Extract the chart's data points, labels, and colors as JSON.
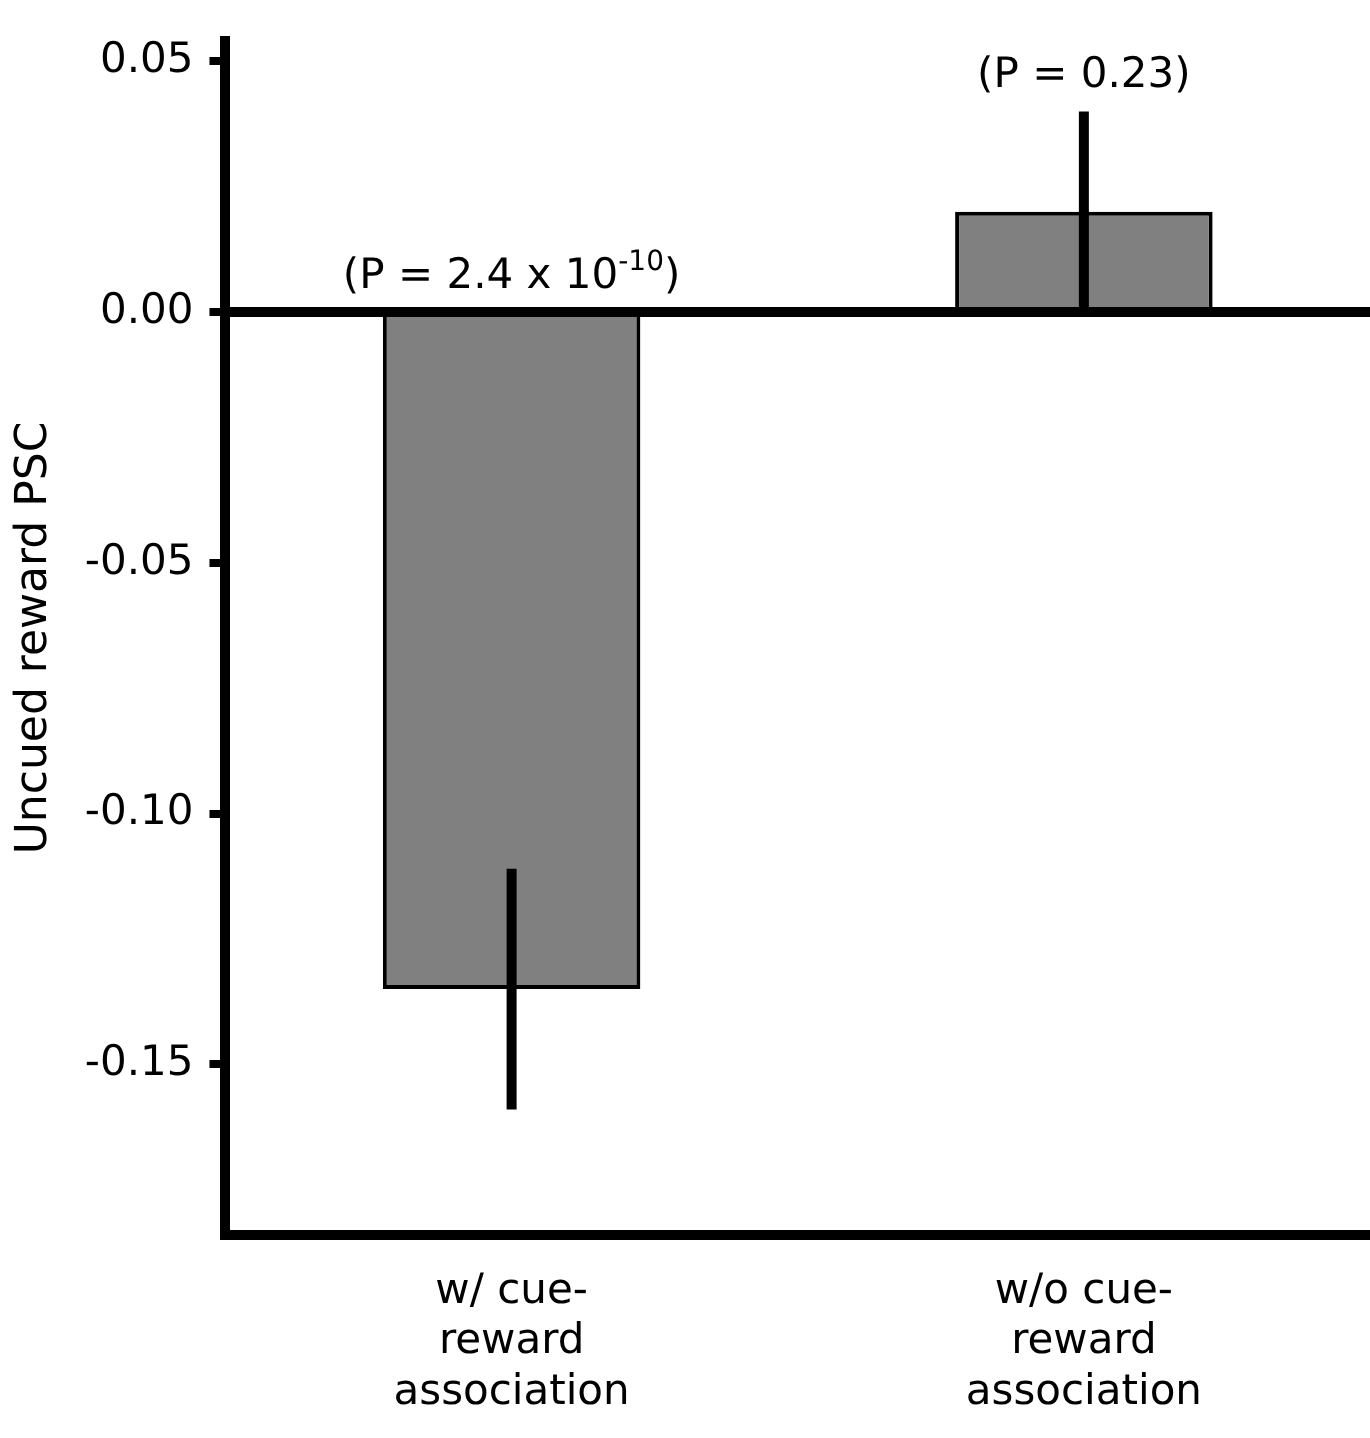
{
  "chart_data": {
    "type": "bar",
    "ylabel": "Uncued reward PSC",
    "categories": [
      "w/ cue-\nreward\nassociation",
      "w/o cue-\nreward\nassociation"
    ],
    "values": [
      -0.135,
      0.02
    ],
    "errors": [
      0.024,
      0.02
    ],
    "color": "#808080",
    "ylim": [
      -0.184,
      0.054
    ],
    "yticks": [
      {
        "value": 0.05,
        "label": "0.05"
      },
      {
        "value": 0,
        "label": "0.00"
      },
      {
        "value": -0.05,
        "label": "-0.05"
      },
      {
        "value": -0.1,
        "label": "-0.10"
      },
      {
        "value": -0.15,
        "label": "-0.15"
      }
    ],
    "grid": false,
    "legend": false,
    "ref_lines": [
      {
        "axis": "y",
        "value": 0,
        "color": "#000000"
      }
    ],
    "annotations": [
      "(P = 2.4 x 10$^{-10}$)",
      "(P = 0.23)"
    ]
  }
}
